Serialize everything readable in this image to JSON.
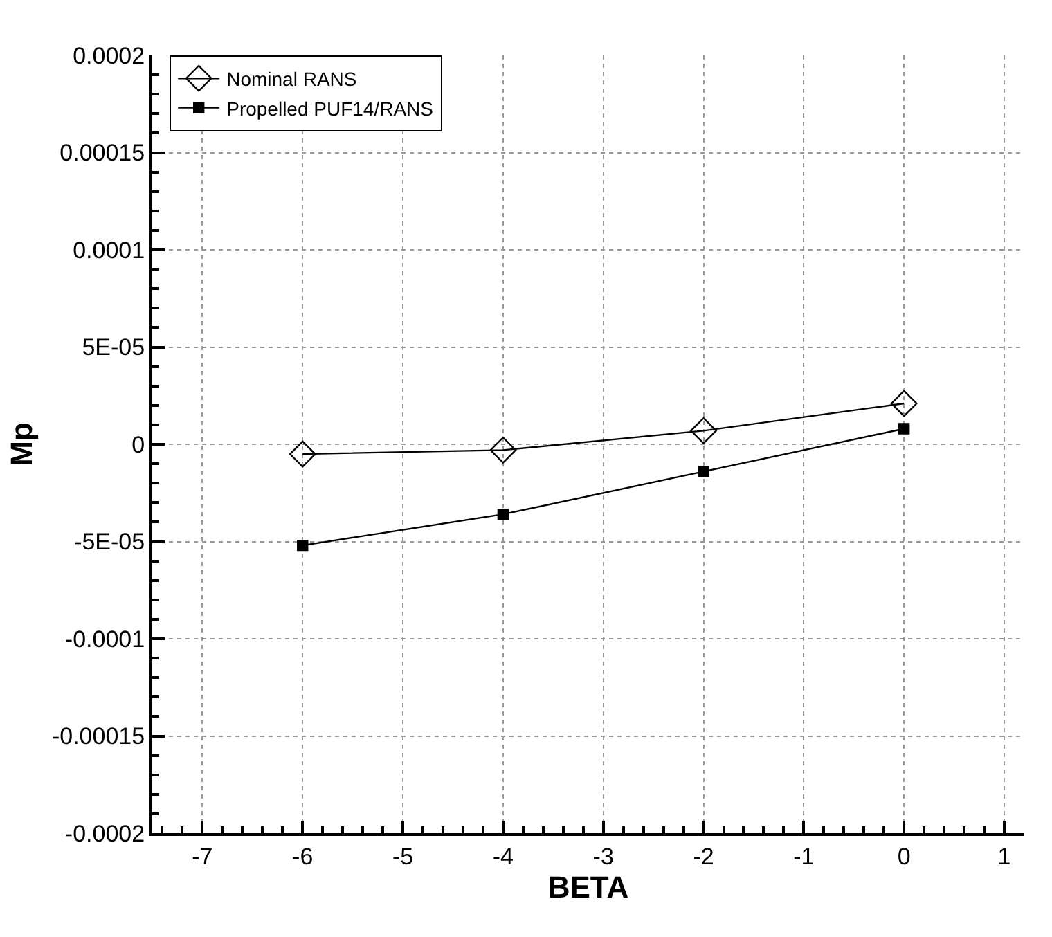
{
  "chart_data": {
    "type": "line",
    "xlabel": "BETA",
    "ylabel": "Mp",
    "x": [
      -6,
      -4,
      -2,
      0
    ],
    "series": [
      {
        "name": "Nominal RANS",
        "color": "#000000",
        "marker": "diamond",
        "values": [
          -5e-06,
          -3e-06,
          7e-06,
          2.1e-05
        ]
      },
      {
        "name": "Propelled PUF14/RANS",
        "color": "#000000",
        "marker": "square",
        "values": [
          -5.2e-05,
          -3.6e-05,
          -1.4e-05,
          8e-06
        ]
      }
    ],
    "xlim": [
      -7.5,
      1.2
    ],
    "xticks": [
      -7,
      -6,
      -5,
      -4,
      -3,
      -2,
      -1,
      0,
      1
    ],
    "ylim": [
      -0.0002,
      0.0002
    ],
    "yticks": [
      {
        "value": -0.0002,
        "label": "-0.0002"
      },
      {
        "value": -0.00015,
        "label": "-0.00015"
      },
      {
        "value": -0.0001,
        "label": "-0.0001"
      },
      {
        "value": -5e-05,
        "label": "-5E-05"
      },
      0,
      {
        "value": 5e-05,
        "label": "5E-05"
      },
      0.0001,
      0.00015,
      0.0002
    ],
    "grid": true,
    "legend": "top left",
    "line_style": "solid"
  }
}
